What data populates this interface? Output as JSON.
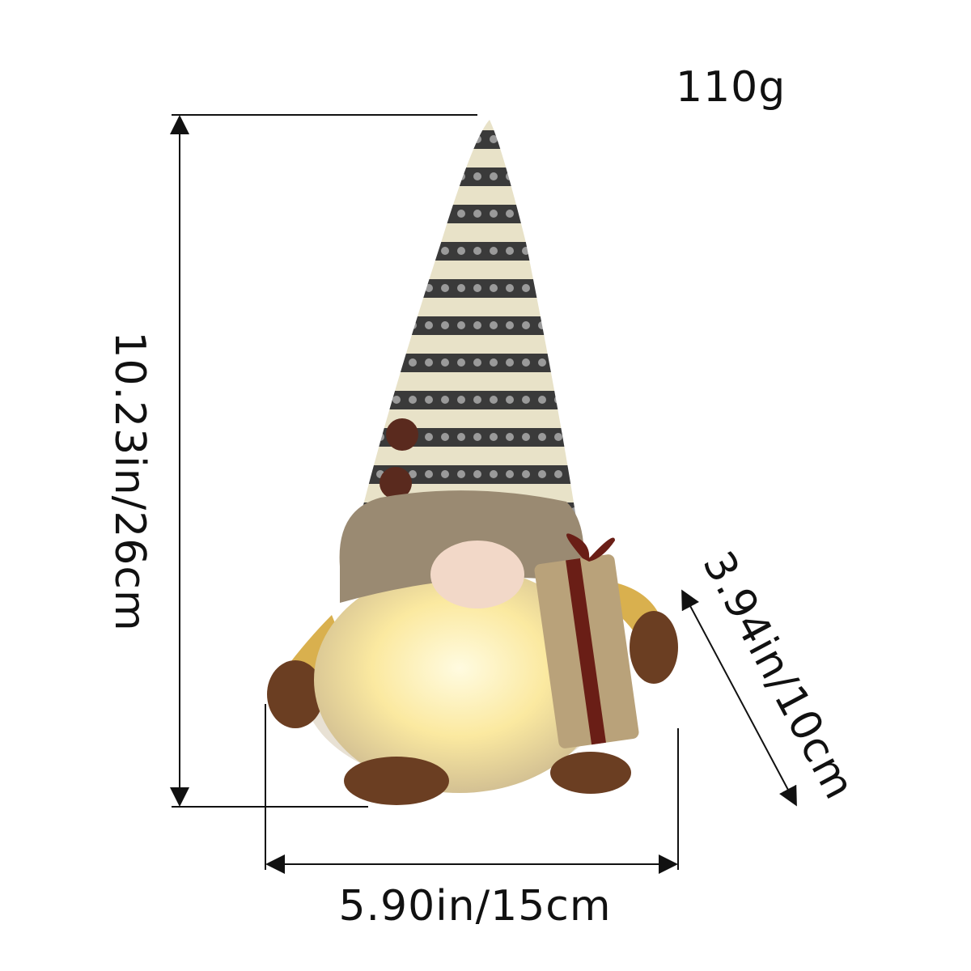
{
  "product": {
    "weight": "110g",
    "height": "10.23in/26cm",
    "width": "5.90in/15cm",
    "depth": "3.94in/10cm"
  },
  "colors": {
    "hat_cream": "#e8e2c8",
    "hat_dark": "#3a3a3a",
    "fur": "#9a8a72",
    "beard_glow": "#fff3b0",
    "arm": "#d9b04e",
    "mitten": "#6b3e22",
    "ribbon": "#6a1e16",
    "burlap": "#b9a27a"
  }
}
